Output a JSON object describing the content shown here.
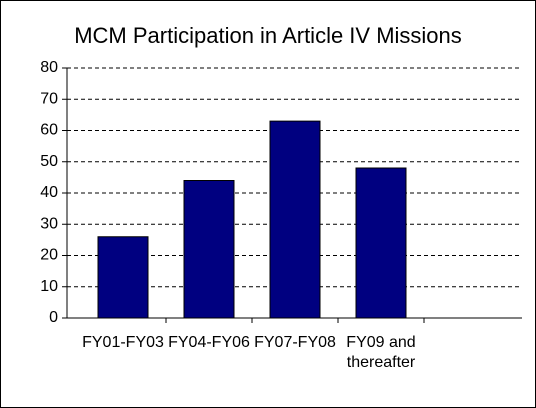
{
  "chart_data": {
    "type": "bar",
    "title": "MCM Participation in Article IV Missions",
    "categories": [
      "FY01-FY03",
      "FY04-FY06",
      "FY07-FY08",
      "FY09 and thereafter"
    ],
    "values": [
      26,
      44,
      63,
      48
    ],
    "color": "#000080",
    "ylim": [
      0,
      80
    ],
    "yticks": [
      0,
      10,
      20,
      30,
      40,
      50,
      60,
      70,
      80
    ],
    "grid": true
  }
}
